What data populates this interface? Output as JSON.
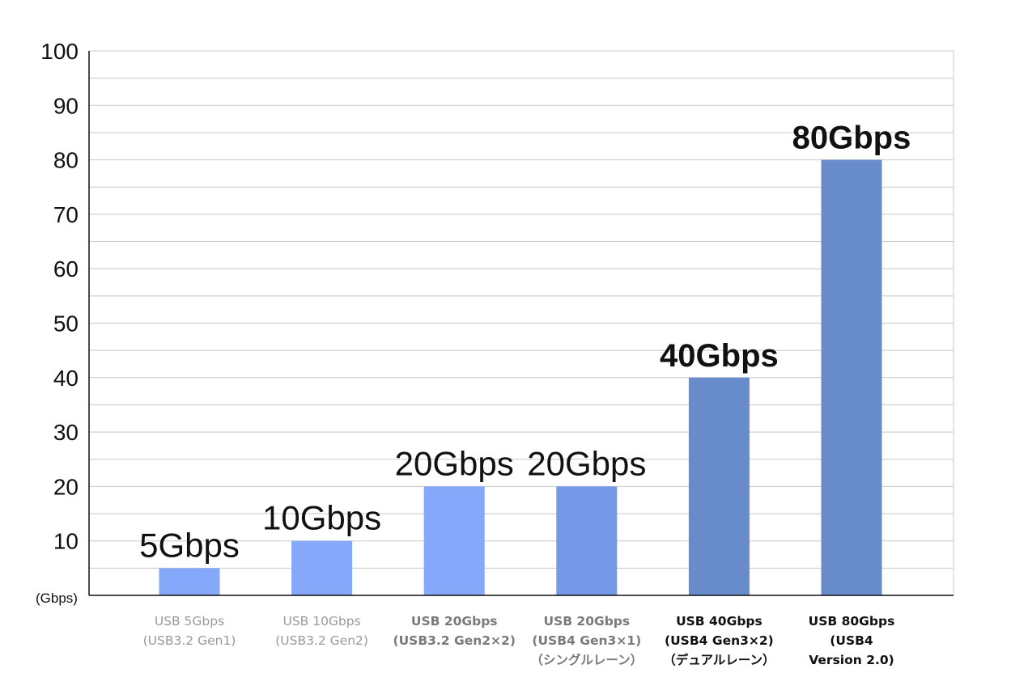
{
  "chart_data": {
    "type": "bar",
    "title": "",
    "xlabel": "",
    "ylabel": "(Gbps)",
    "ylim": [
      0,
      100
    ],
    "yticks": [
      10,
      20,
      30,
      40,
      50,
      60,
      70,
      80,
      90,
      100
    ],
    "grid": true,
    "categories": [
      [
        "USB 5Gbps",
        "(USB3.2 Gen1)"
      ],
      [
        "USB 10Gbps",
        "(USB3.2 Gen2)"
      ],
      [
        "USB 20Gbps",
        "(USB3.2 Gen2×2)"
      ],
      [
        "USB 20Gbps",
        "(USB4 Gen3×1)",
        "（シングルレーン）"
      ],
      [
        "USB 40Gbps",
        "(USB4 Gen3×2)",
        "（デュアルレーン）"
      ],
      [
        "USB 80Gbps",
        "(USB4",
        "Version 2.0)"
      ]
    ],
    "values": [
      5,
      10,
      20,
      20,
      40,
      80
    ],
    "data_labels": [
      "5Gbps",
      "10Gbps",
      "20Gbps",
      "20Gbps",
      "40Gbps",
      "80Gbps"
    ],
    "colors": {
      "bars": [
        "#86a8fb",
        "#86a8fb",
        "#86a8fb",
        "#7599e8",
        "#678bcb",
        "#678bcb"
      ],
      "category_text": [
        "#999999",
        "#999999",
        "#7a7a7a",
        "#7a7a7a",
        "#111111",
        "#111111"
      ],
      "grid": "#c8c8c8",
      "axis": "#111111"
    }
  }
}
